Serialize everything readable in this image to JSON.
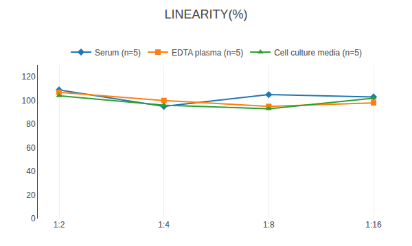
{
  "chart_data": {
    "type": "line",
    "title": "LINEARITY(%)",
    "categories": [
      "1:2",
      "1:4",
      "1:8",
      "1:16"
    ],
    "series": [
      {
        "name": "Serum (n=5)",
        "values": [
          109,
          95,
          105,
          103
        ],
        "marker": "diamond"
      },
      {
        "name": "EDTA plasma (n=5)",
        "values": [
          107,
          100,
          95,
          98
        ],
        "marker": "square"
      },
      {
        "name": "Cell culture media (n=5)",
        "values": [
          104,
          96,
          93,
          102
        ],
        "marker": "triangle-up"
      }
    ],
    "ylim": [
      0,
      130
    ],
    "yticks": [
      0,
      20,
      40,
      60,
      80,
      100,
      120
    ],
    "grid": "x",
    "legend": "top"
  }
}
